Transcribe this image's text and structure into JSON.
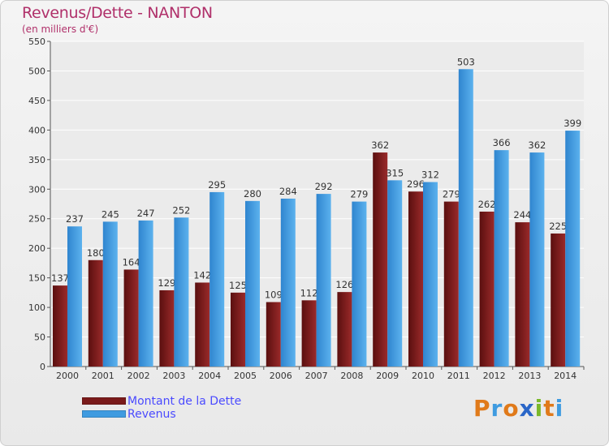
{
  "header": {
    "title": "Revenus/Dette - NANTON",
    "subtitle": "(en milliers d'€)"
  },
  "chart_data": {
    "type": "bar",
    "categories": [
      "2000",
      "2001",
      "2002",
      "2003",
      "2004",
      "2005",
      "2006",
      "2007",
      "2008",
      "2009",
      "2010",
      "2011",
      "2012",
      "2013",
      "2014"
    ],
    "series": [
      {
        "name": "Montant de la Dette",
        "color": "#7a1a1a",
        "values": [
          137,
          180,
          164,
          129,
          142,
          125,
          109,
          112,
          126,
          362,
          296,
          279,
          262,
          244,
          225
        ]
      },
      {
        "name": "Revenus",
        "color": "#3f9be0",
        "values": [
          237,
          245,
          247,
          252,
          295,
          280,
          284,
          292,
          279,
          315,
          312,
          503,
          366,
          362,
          399
        ]
      }
    ],
    "ylim": [
      0,
      550
    ],
    "yticks": [
      0,
      50,
      100,
      150,
      200,
      250,
      300,
      350,
      400,
      450,
      500,
      550
    ],
    "grid": true,
    "legend_position": "bottom-left"
  },
  "legend": {
    "items": [
      {
        "label": "Montant de la Dette",
        "color": "#7a1a1a"
      },
      {
        "label": "Revenus",
        "color": "#3f9be0"
      }
    ]
  },
  "brand": {
    "letters": [
      "P",
      "r",
      "o",
      "x",
      "i",
      "t",
      "i"
    ],
    "colors": [
      "#e07a1a",
      "#3f9be0",
      "#e07a1a",
      "#2a66c8",
      "#7ab82a",
      "#e07a1a",
      "#3f9be0"
    ]
  }
}
